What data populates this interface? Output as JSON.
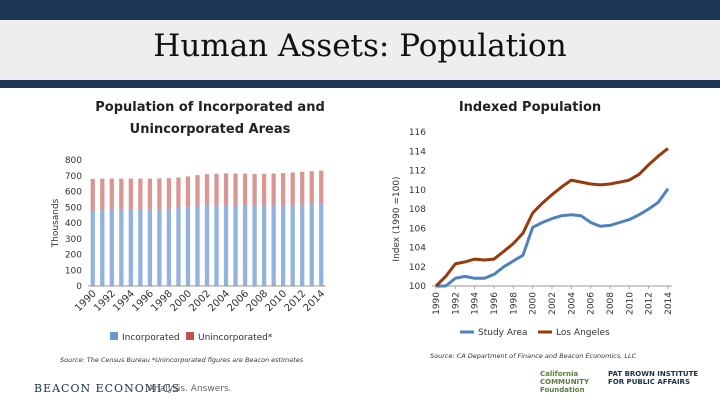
{
  "slide": {
    "title": "Human Assets: Population",
    "footer_brand": "BEACON ECONOMICS",
    "footer_tagline": "Analysis. Answers.",
    "logos": [
      "California COMMUNITY Foundation",
      "PAT BROWN INSTITUTE FOR PUBLIC AFFAIRS"
    ]
  },
  "left": {
    "title_line1": "Population of Incorporated and",
    "title_line2": "Unincorporated Areas",
    "source": "Source: The Census Bureau *Unincorporated figures are Beacon estimates"
  },
  "right": {
    "title": "Indexed Population",
    "source": "Source: CA Department of Finance and Beacon Economics, LLC"
  },
  "chart_data": [
    {
      "type": "bar",
      "stacked": true,
      "title": "Population of Incorporated and Unincorporated Areas",
      "ylabel": "Thousands",
      "ylim": [
        0,
        800
      ],
      "yticks": [
        0,
        100,
        200,
        300,
        400,
        500,
        600,
        700,
        800
      ],
      "xtick_labels": [
        "1990",
        "1992",
        "1994",
        "1996",
        "1998",
        "2000",
        "2002",
        "2004",
        "2006",
        "2008",
        "2010",
        "2012",
        "2014"
      ],
      "categories": [
        "1990",
        "1991",
        "1992",
        "1993",
        "1994",
        "1995",
        "1996",
        "1997",
        "1998",
        "1999",
        "2000",
        "2001",
        "2002",
        "2003",
        "2004",
        "2005",
        "2006",
        "2007",
        "2008",
        "2009",
        "2010",
        "2011",
        "2012",
        "2013",
        "2014"
      ],
      "series": [
        {
          "name": "Incorporated",
          "color": "#6f98d1",
          "values": [
            480,
            482,
            484,
            485,
            486,
            487,
            488,
            489,
            491,
            494,
            500,
            506,
            510,
            512,
            513,
            512,
            511,
            510,
            511,
            512,
            514,
            516,
            518,
            520,
            522
          ]
        },
        {
          "name": "Unincorporated*",
          "color": "#c0504d",
          "values": [
            200,
            199,
            198,
            197,
            196,
            195,
            194,
            194,
            194,
            195,
            196,
            198,
            200,
            201,
            202,
            202,
            202,
            201,
            201,
            202,
            203,
            205,
            207,
            209,
            211
          ]
        }
      ],
      "legend": "bottom"
    },
    {
      "type": "line",
      "title": "Indexed Population",
      "ylabel": "Index (1990 =100)",
      "ylim": [
        100,
        116
      ],
      "yticks": [
        100,
        102,
        104,
        106,
        108,
        110,
        112,
        114,
        116
      ],
      "x": [
        1990,
        1991,
        1992,
        1993,
        1994,
        1995,
        1996,
        1997,
        1998,
        1999,
        2000,
        2001,
        2002,
        2003,
        2004,
        2005,
        2006,
        2007,
        2008,
        2009,
        2010,
        2011,
        2012,
        2013,
        2014
      ],
      "xtick_labels": [
        "1990",
        "1992",
        "1994",
        "1996",
        "1998",
        "2000",
        "2002",
        "2004",
        "2006",
        "2008",
        "2010",
        "2012",
        "2014"
      ],
      "series": [
        {
          "name": "Study Area",
          "color": "#4f81bd",
          "values": [
            100.0,
            100.0,
            100.8,
            101.0,
            100.8,
            100.8,
            101.2,
            102.0,
            102.6,
            103.2,
            106.1,
            106.6,
            107.0,
            107.3,
            107.4,
            107.3,
            106.6,
            106.2,
            106.3,
            106.6,
            106.9,
            107.4,
            108.0,
            108.7,
            110.1
          ]
        },
        {
          "name": "Los Angeles",
          "color": "#943c0e",
          "values": [
            100.0,
            101.0,
            102.3,
            102.5,
            102.8,
            102.7,
            102.8,
            103.6,
            104.4,
            105.5,
            107.6,
            108.6,
            109.5,
            110.3,
            111.0,
            110.8,
            110.6,
            110.5,
            110.6,
            110.8,
            111.0,
            111.6,
            112.6,
            113.5,
            114.3
          ]
        }
      ],
      "legend": "bottom"
    }
  ]
}
